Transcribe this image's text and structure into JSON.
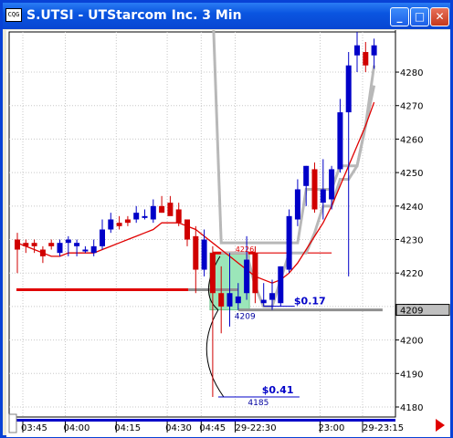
{
  "window": {
    "title": "S.UTSI - UTStarcom Inc. 3 Min",
    "icon_label": "CQG"
  },
  "price_axis": {
    "ticks": [
      "4280",
      "4270",
      "4260",
      "4250",
      "4240",
      "4230",
      "4220",
      "4210",
      "4200",
      "4190",
      "4180"
    ],
    "last_price": "4209"
  },
  "time_axis": {
    "labels": [
      "03:45",
      "04:00",
      "04:15",
      "04:30",
      "04:45",
      "29-22:30",
      "23:00",
      "29-23:15"
    ]
  },
  "annotations": {
    "gain_top": "$0.17",
    "level_top": "4209",
    "gain_bottom": "$0.41",
    "level_bottom": "4185",
    "level_entry": "4226"
  },
  "chart_data": {
    "type": "candlestick",
    "instrument": "S.UTSI",
    "interval": "3 Min",
    "ylim": [
      4177,
      4292
    ],
    "candles": [
      {
        "o": 4230,
        "h": 4232,
        "l": 4220,
        "c": 4227,
        "dir": "down"
      },
      {
        "o": 4229,
        "h": 4230,
        "l": 4226,
        "c": 4228,
        "dir": "down"
      },
      {
        "o": 4229,
        "h": 4230,
        "l": 4226,
        "c": 4228,
        "dir": "down"
      },
      {
        "o": 4227,
        "h": 4228,
        "l": 4223,
        "c": 4225,
        "dir": "down"
      },
      {
        "o": 4229,
        "h": 4230,
        "l": 4227,
        "c": 4228,
        "dir": "down"
      },
      {
        "o": 4226,
        "h": 4230,
        "l": 4225,
        "c": 4229,
        "dir": "up"
      },
      {
        "o": 4229,
        "h": 4231,
        "l": 4225,
        "c": 4230,
        "dir": "up"
      },
      {
        "o": 4229,
        "h": 4230,
        "l": 4225,
        "c": 4228,
        "dir": "up"
      },
      {
        "o": 4227,
        "h": 4228,
        "l": 4226,
        "c": 4227,
        "dir": "up"
      },
      {
        "o": 4226,
        "h": 4230,
        "l": 4225,
        "c": 4228,
        "dir": "up"
      },
      {
        "o": 4228,
        "h": 4236,
        "l": 4227,
        "c": 4233,
        "dir": "up"
      },
      {
        "o": 4233,
        "h": 4238,
        "l": 4232,
        "c": 4236,
        "dir": "up"
      },
      {
        "o": 4235,
        "h": 4237,
        "l": 4233,
        "c": 4234,
        "dir": "down"
      },
      {
        "o": 4235,
        "h": 4237,
        "l": 4234,
        "c": 4236,
        "dir": "down"
      },
      {
        "o": 4236,
        "h": 4240,
        "l": 4235,
        "c": 4238,
        "dir": "up"
      },
      {
        "o": 4237,
        "h": 4239,
        "l": 4236,
        "c": 4237,
        "dir": "up"
      },
      {
        "o": 4236,
        "h": 4242,
        "l": 4235,
        "c": 4240,
        "dir": "up"
      },
      {
        "o": 4240,
        "h": 4243,
        "l": 4238,
        "c": 4238,
        "dir": "down"
      },
      {
        "o": 4241,
        "h": 4243,
        "l": 4238,
        "c": 4237,
        "dir": "down"
      },
      {
        "o": 4239,
        "h": 4241,
        "l": 4234,
        "c": 4235,
        "dir": "down"
      },
      {
        "o": 4236,
        "h": 4236,
        "l": 4228,
        "c": 4230,
        "dir": "down"
      },
      {
        "o": 4231,
        "h": 4234,
        "l": 4214,
        "c": 4221,
        "dir": "down"
      },
      {
        "o": 4221,
        "h": 4233,
        "l": 4219,
        "c": 4230,
        "dir": "up"
      },
      {
        "o": 4226,
        "h": 4228,
        "l": 4183,
        "c": 4214,
        "dir": "down"
      },
      {
        "o": 4214,
        "h": 4222,
        "l": 4202,
        "c": 4210,
        "dir": "down"
      },
      {
        "o": 4210,
        "h": 4226,
        "l": 4204,
        "c": 4214,
        "dir": "up"
      },
      {
        "o": 4213,
        "h": 4217,
        "l": 4209,
        "c": 4211,
        "dir": "up"
      },
      {
        "o": 4214,
        "h": 4231,
        "l": 4212,
        "c": 4224,
        "dir": "up"
      },
      {
        "o": 4226,
        "h": 4228,
        "l": 4211,
        "c": 4214,
        "dir": "down"
      },
      {
        "o": 4212,
        "h": 4217,
        "l": 4210,
        "c": 4211,
        "dir": "up"
      },
      {
        "o": 4212,
        "h": 4218,
        "l": 4209,
        "c": 4214,
        "dir": "up"
      },
      {
        "o": 4211,
        "h": 4222,
        "l": 4210,
        "c": 4222,
        "dir": "up"
      },
      {
        "o": 4221,
        "h": 4239,
        "l": 4220,
        "c": 4237,
        "dir": "up"
      },
      {
        "o": 4236,
        "h": 4248,
        "l": 4234,
        "c": 4245,
        "dir": "up"
      },
      {
        "o": 4246,
        "h": 4252,
        "l": 4240,
        "c": 4252,
        "dir": "up"
      },
      {
        "o": 4251,
        "h": 4253,
        "l": 4238,
        "c": 4239,
        "dir": "down"
      },
      {
        "o": 4245,
        "h": 4254,
        "l": 4236,
        "c": 4241,
        "dir": "up"
      },
      {
        "o": 4242,
        "h": 4252,
        "l": 4239,
        "c": 4251,
        "dir": "up"
      },
      {
        "o": 4251,
        "h": 4272,
        "l": 4250,
        "c": 4268,
        "dir": "up"
      },
      {
        "o": 4268,
        "h": 4286,
        "l": 4219,
        "c": 4282,
        "dir": "up"
      },
      {
        "o": 4285,
        "h": 4292,
        "l": 4280,
        "c": 4288,
        "dir": "up"
      },
      {
        "o": 4286,
        "h": 4289,
        "l": 4280,
        "c": 4282,
        "dir": "down"
      },
      {
        "o": 4285,
        "h": 4290,
        "l": 4281,
        "c": 4288,
        "dir": "up"
      }
    ],
    "moving_average": {
      "color": "#e00000",
      "values": [
        4229,
        4228,
        4227,
        4226,
        4225,
        4225,
        4226,
        4226,
        4226,
        4226,
        4227,
        4228,
        4229,
        4230,
        4231,
        4232,
        4233,
        4235,
        4235,
        4235,
        4234,
        4233,
        4231,
        4229,
        4227,
        4225,
        4223,
        4221,
        4219,
        4218,
        4217,
        4218,
        4220,
        4223,
        4227,
        4231,
        4235,
        4240,
        4246,
        4252,
        4258,
        4264,
        4271
      ]
    },
    "grey_band_upper": {
      "color": "#b8b8b8",
      "values": [
        null,
        null,
        null,
        null,
        null,
        null,
        null,
        null,
        null,
        null,
        null,
        null,
        null,
        null,
        null,
        null,
        null,
        null,
        null,
        null,
        null,
        null,
        null,
        4300,
        4229,
        4229,
        4229,
        4229,
        4229,
        4229,
        4229,
        4229,
        4229,
        4229,
        4245,
        4245,
        4245,
        4245,
        4252,
        4252,
        4252,
        4264,
        4282
      ]
    },
    "grey_band_lower": {
      "color": "#b8b8b8",
      "values": [
        null,
        null,
        null,
        null,
        null,
        null,
        null,
        null,
        null,
        null,
        null,
        null,
        null,
        null,
        null,
        null,
        null,
        null,
        null,
        null,
        null,
        null,
        null,
        null,
        4226,
        4226,
        4226,
        4226,
        4216,
        4210,
        4210,
        4218,
        4226,
        4226,
        4226,
        4232,
        4240,
        4240,
        4248,
        4248,
        4252,
        4264,
        4276
      ]
    },
    "support_line_red": {
      "value": 4215,
      "color": "#e00000"
    },
    "support_line_grey": {
      "value": 4215,
      "color": "#909090"
    },
    "exit_line": {
      "value": 4209,
      "color": "#909090"
    },
    "entry_line": {
      "value": 4226,
      "color": "#e00000"
    },
    "colors": {
      "up": "#0000c8",
      "down": "#d00000",
      "highlight": "#9be6b9",
      "text_annotation": "#0000c8"
    }
  }
}
